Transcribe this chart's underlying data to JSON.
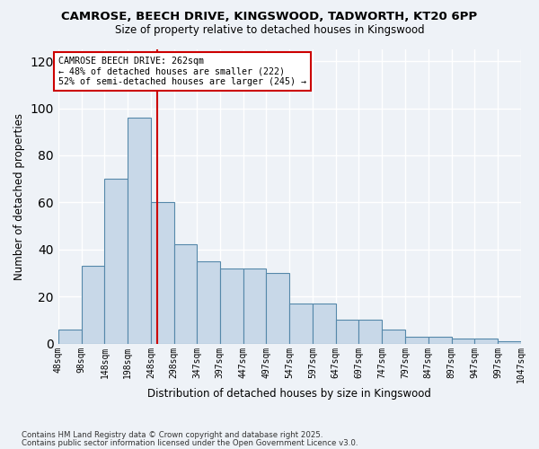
{
  "title": "CAMROSE, BEECH DRIVE, KINGSWOOD, TADWORTH, KT20 6PP",
  "subtitle": "Size of property relative to detached houses in Kingswood",
  "xlabel": "Distribution of detached houses by size in Kingswood",
  "ylabel": "Number of detached properties",
  "bar_color": "#c8d8e8",
  "bar_edge_color": "#5588aa",
  "background_color": "#eef2f7",
  "grid_color": "#ffffff",
  "vline_value": 262,
  "vline_color": "#cc0000",
  "annotation_title": "CAMROSE BEECH DRIVE: 262sqm",
  "annotation_line1": "← 48% of detached houses are smaller (222)",
  "annotation_line2": "52% of semi-detached houses are larger (245) →",
  "bins": [
    48,
    98,
    148,
    198,
    248,
    298,
    347,
    397,
    447,
    497,
    547,
    597,
    647,
    697,
    747,
    797,
    847,
    897,
    947,
    997,
    1047
  ],
  "bin_labels": [
    "48sqm",
    "98sqm",
    "148sqm",
    "198sqm",
    "248sqm",
    "298sqm",
    "347sqm",
    "397sqm",
    "447sqm",
    "497sqm",
    "547sqm",
    "597sqm",
    "647sqm",
    "697sqm",
    "747sqm",
    "797sqm",
    "847sqm",
    "897sqm",
    "947sqm",
    "997sqm",
    "1047sqm"
  ],
  "values": [
    6,
    33,
    70,
    96,
    60,
    42,
    35,
    32,
    32,
    30,
    17,
    17,
    10,
    10,
    6,
    3,
    3,
    2,
    2,
    1
  ],
  "ylim": [
    0,
    125
  ],
  "yticks": [
    0,
    20,
    40,
    60,
    80,
    100,
    120
  ],
  "footnote1": "Contains HM Land Registry data © Crown copyright and database right 2025.",
  "footnote2": "Contains public sector information licensed under the Open Government Licence v3.0."
}
